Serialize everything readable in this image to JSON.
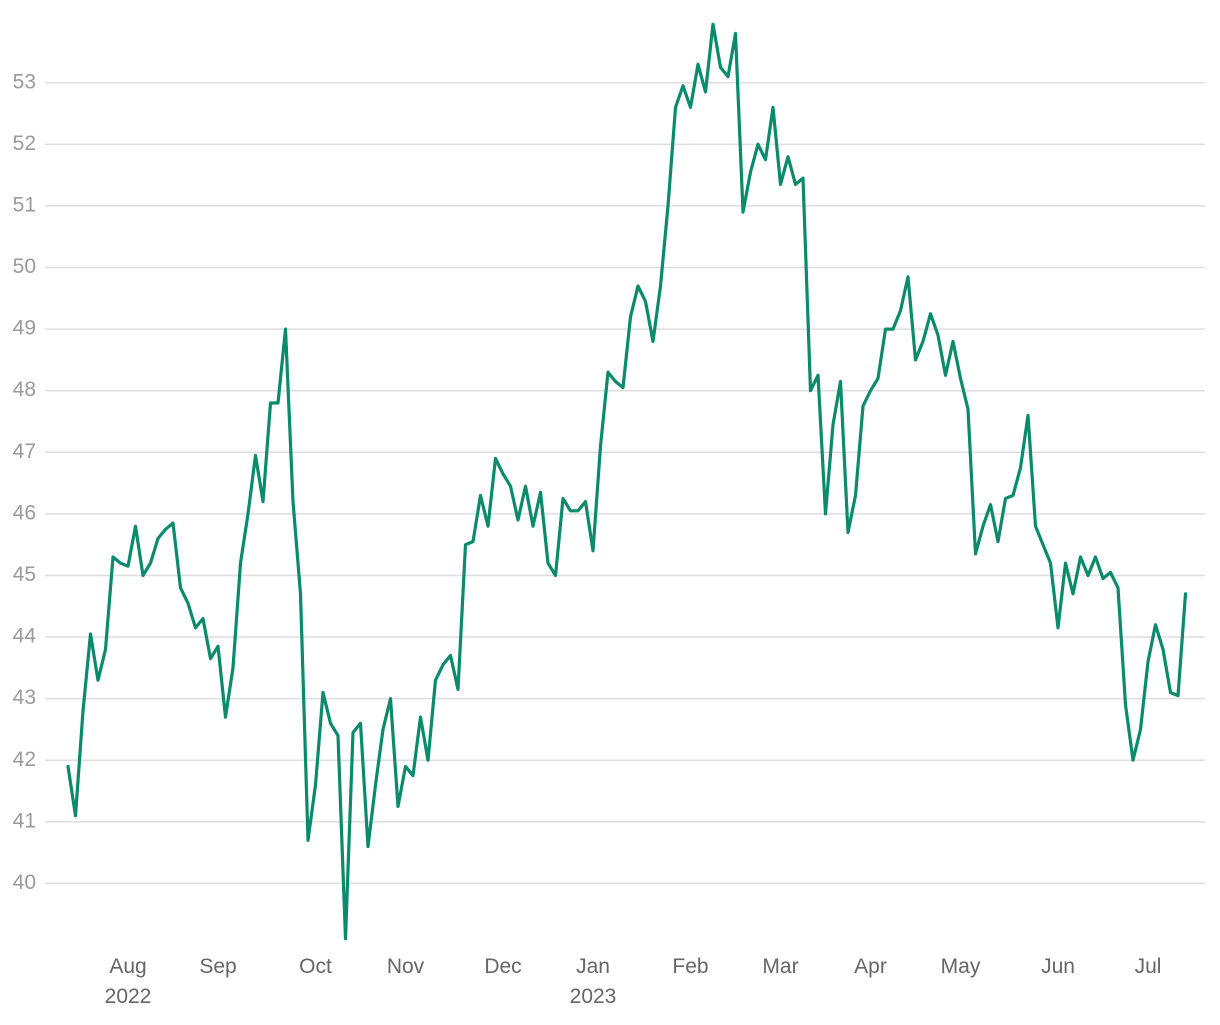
{
  "chart_data": {
    "type": "line",
    "color": "#0b8a6c",
    "grid": true,
    "ylim": [
      39,
      54.1
    ],
    "yticks": [
      40,
      41,
      42,
      43,
      44,
      45,
      46,
      47,
      48,
      49,
      50,
      51,
      52,
      53
    ],
    "categories": [
      null,
      null,
      null,
      null,
      null,
      null,
      null,
      null,
      "Aug",
      null,
      null,
      null,
      null,
      null,
      null,
      null,
      null,
      null,
      null,
      null,
      "Sep",
      null,
      null,
      null,
      null,
      null,
      null,
      null,
      null,
      null,
      null,
      null,
      null,
      "Oct",
      null,
      null,
      null,
      null,
      null,
      null,
      null,
      null,
      null,
      null,
      null,
      "Nov",
      null,
      null,
      null,
      null,
      null,
      null,
      null,
      null,
      null,
      null,
      null,
      null,
      "Dec",
      null,
      null,
      null,
      null,
      null,
      null,
      null,
      null,
      null,
      null,
      null,
      "Jan",
      null,
      null,
      null,
      null,
      null,
      null,
      null,
      null,
      null,
      null,
      null,
      null,
      "Feb",
      null,
      null,
      null,
      null,
      null,
      null,
      null,
      null,
      null,
      null,
      null,
      "Mar",
      null,
      null,
      null,
      null,
      null,
      null,
      null,
      null,
      null,
      null,
      null,
      "Apr",
      null,
      null,
      null,
      null,
      null,
      null,
      null,
      null,
      null,
      null,
      null,
      "May",
      null,
      null,
      null,
      null,
      null,
      null,
      null,
      null,
      null,
      null,
      null,
      null,
      "Jun",
      null,
      null,
      null,
      null,
      null,
      null,
      null,
      null,
      null,
      null,
      null,
      "Jul",
      null,
      null,
      null,
      null,
      null
    ],
    "category_years": [
      null,
      null,
      null,
      null,
      null,
      null,
      null,
      null,
      "2022",
      null,
      null,
      null,
      null,
      null,
      null,
      null,
      null,
      null,
      null,
      null,
      null,
      null,
      null,
      null,
      null,
      null,
      null,
      null,
      null,
      null,
      null,
      null,
      null,
      null,
      null,
      null,
      null,
      null,
      null,
      null,
      null,
      null,
      null,
      null,
      null,
      null,
      null,
      null,
      null,
      null,
      null,
      null,
      null,
      null,
      null,
      null,
      null,
      null,
      null,
      null,
      null,
      null,
      null,
      null,
      null,
      null,
      null,
      null,
      null,
      null,
      "2023",
      null,
      null,
      null,
      null,
      null,
      null,
      null,
      null,
      null,
      null,
      null,
      null,
      null,
      null,
      null,
      null,
      null,
      null,
      null,
      null,
      null,
      null,
      null,
      null,
      null,
      null,
      null,
      null,
      null,
      null,
      null,
      null,
      null,
      null,
      null,
      null,
      null,
      null,
      null,
      null,
      null,
      null,
      null,
      null,
      null,
      null,
      null,
      null,
      null,
      null,
      null,
      null,
      null,
      null,
      null,
      null,
      null,
      null,
      null,
      null,
      null,
      null,
      null,
      null,
      null,
      null,
      null,
      null,
      null,
      null,
      null,
      null,
      null,
      null,
      null,
      null,
      null,
      null,
      null
    ],
    "values": [
      41.9,
      41.1,
      42.8,
      44.05,
      43.3,
      43.8,
      45.3,
      45.2,
      45.15,
      45.8,
      45.0,
      45.2,
      45.6,
      45.75,
      45.85,
      44.8,
      44.55,
      44.15,
      44.3,
      43.65,
      43.85,
      42.7,
      43.5,
      45.2,
      46.0,
      46.95,
      46.2,
      47.8,
      47.8,
      49.0,
      46.2,
      44.7,
      40.7,
      41.6,
      43.1,
      42.6,
      42.4,
      39.1,
      42.45,
      42.6,
      40.6,
      41.6,
      42.5,
      43.0,
      41.25,
      41.9,
      41.75,
      42.7,
      42.0,
      43.3,
      43.55,
      43.7,
      43.15,
      45.5,
      45.55,
      46.3,
      45.8,
      46.9,
      46.65,
      46.45,
      45.9,
      46.45,
      45.8,
      46.35,
      45.2,
      45.0,
      46.25,
      46.05,
      46.05,
      46.2,
      45.4,
      47.1,
      48.3,
      48.15,
      48.05,
      49.2,
      49.7,
      49.45,
      48.8,
      49.7,
      51.0,
      52.6,
      52.95,
      52.6,
      53.3,
      52.85,
      53.95,
      53.25,
      53.1,
      53.8,
      50.9,
      51.55,
      52.0,
      51.75,
      52.6,
      51.35,
      51.8,
      51.35,
      51.45,
      48.0,
      48.25,
      46.0,
      47.45,
      48.15,
      45.7,
      46.3,
      47.75,
      48.0,
      48.2,
      49.0,
      49.0,
      49.3,
      49.85,
      48.5,
      48.8,
      49.25,
      48.9,
      48.25,
      48.8,
      48.2,
      47.7,
      45.35,
      45.8,
      46.15,
      45.55,
      46.25,
      46.3,
      46.75,
      47.6,
      45.8,
      45.5,
      45.2,
      44.15,
      45.2,
      44.7,
      45.3,
      45.0,
      45.3,
      44.95,
      45.05,
      44.8,
      42.9,
      42.0,
      42.5,
      43.6,
      44.2,
      43.8,
      43.1,
      43.05,
      44.7
    ]
  }
}
